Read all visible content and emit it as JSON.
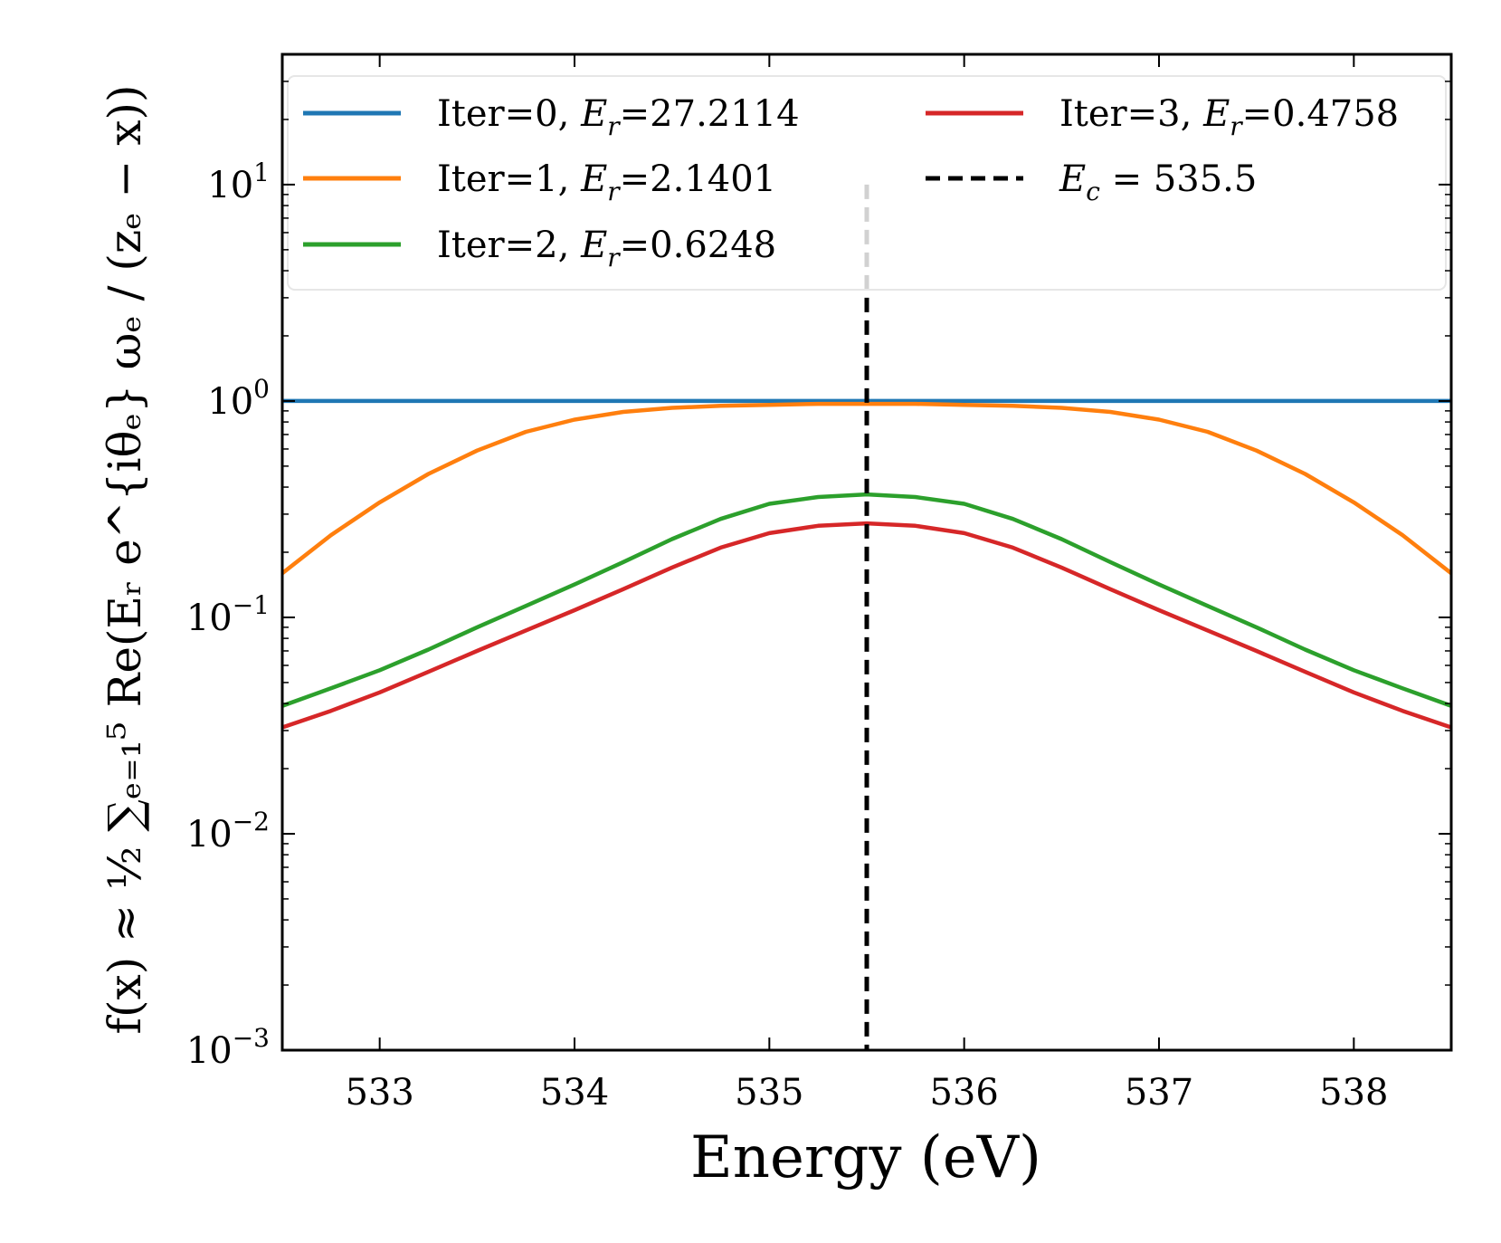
{
  "chart_data": {
    "type": "line",
    "xlabel": "Energy (eV)",
    "ylabel": "f(x) ≈ ½ ∑ₑ₌₁⁵ Re(Eᵣ e^{iθₑ} ωₑ / (zₑ − x))",
    "xlim": [
      532.5,
      538.5
    ],
    "ylim": [
      0.001,
      40
    ],
    "yscale": "log",
    "x_ticks": [
      533,
      534,
      535,
      536,
      537,
      538
    ],
    "y_ticks": [
      {
        "value": 0.001,
        "base": "10",
        "exp": "−3"
      },
      {
        "value": 0.01,
        "base": "10",
        "exp": "−2"
      },
      {
        "value": 0.1,
        "base": "10",
        "exp": "−1"
      },
      {
        "value": 1,
        "base": "10",
        "exp": "0"
      },
      {
        "value": 10,
        "base": "10",
        "exp": "1"
      }
    ],
    "grid": false,
    "legend_position": "top",
    "vline": {
      "x": 535.5,
      "label_var": "E",
      "label_sub": "c",
      "label_rest": " = 535.5",
      "color": "#000000",
      "style": "dashed"
    },
    "x": [
      532.5,
      532.75,
      533.0,
      533.25,
      533.5,
      533.75,
      534.0,
      534.25,
      534.5,
      534.75,
      535.0,
      535.25,
      535.5,
      535.75,
      536.0,
      536.25,
      536.5,
      536.75,
      537.0,
      537.25,
      537.5,
      537.75,
      538.0,
      538.25,
      538.5
    ],
    "series": [
      {
        "name": "Iter=0",
        "er_value": "27.2114",
        "color": "#1f77b4",
        "values": [
          1.0,
          1.0,
          1.0,
          1.0,
          1.0,
          1.0,
          1.0,
          1.0,
          1.0,
          1.0,
          1.0,
          1.0,
          1.0,
          1.0,
          1.0,
          1.0,
          1.0,
          1.0,
          1.0,
          1.0,
          1.0,
          1.0,
          1.0,
          1.0,
          1.0
        ]
      },
      {
        "name": "Iter=1",
        "er_value": "2.1401",
        "color": "#ff7f0e",
        "values": [
          0.16,
          0.24,
          0.34,
          0.46,
          0.59,
          0.72,
          0.82,
          0.89,
          0.93,
          0.95,
          0.96,
          0.97,
          0.97,
          0.97,
          0.96,
          0.95,
          0.93,
          0.89,
          0.82,
          0.72,
          0.59,
          0.46,
          0.34,
          0.24,
          0.16
        ]
      },
      {
        "name": "Iter=2",
        "er_value": "0.6248",
        "color": "#2ca02c",
        "values": [
          0.039,
          0.047,
          0.057,
          0.071,
          0.09,
          0.113,
          0.142,
          0.18,
          0.23,
          0.285,
          0.335,
          0.36,
          0.37,
          0.36,
          0.335,
          0.285,
          0.23,
          0.18,
          0.142,
          0.113,
          0.09,
          0.071,
          0.057,
          0.047,
          0.039
        ]
      },
      {
        "name": "Iter=3",
        "er_value": "0.4758",
        "color": "#d62728",
        "values": [
          0.031,
          0.037,
          0.045,
          0.056,
          0.07,
          0.087,
          0.108,
          0.135,
          0.17,
          0.21,
          0.245,
          0.265,
          0.272,
          0.265,
          0.245,
          0.21,
          0.17,
          0.135,
          0.108,
          0.087,
          0.07,
          0.056,
          0.045,
          0.037,
          0.031
        ]
      }
    ]
  }
}
